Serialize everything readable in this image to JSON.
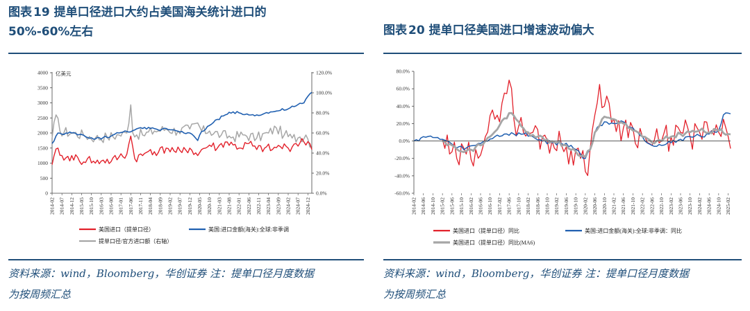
{
  "left": {
    "title_prefix": "图表",
    "title_num": "19",
    "title_line1": "提单口径进口大约占美国海关统计进口的",
    "title_line2": "50%-60%左右",
    "source_line1": "资料来源：wind，Bloomberg，华创证券   注：提单口径月度数据",
    "source_line2": "为按周频汇总"
  },
  "right": {
    "title_prefix": "图表",
    "title_num": "20",
    "title_text": "提单口径美国进口增速波动偏大",
    "source_line1": "资料来源：wind，Bloomberg，华创证券   注：提单口径月度数据",
    "source_line2": "为按周频汇总"
  },
  "colors": {
    "red": "#e2202a",
    "blue": "#1f5fb0",
    "gray": "#a6a6a6",
    "accent": "#1f4e79"
  },
  "chart_data": [
    {
      "type": "line",
      "ylabel": "亿美元",
      "ylim": [
        0,
        4000
      ],
      "y2lim": [
        0,
        1.2
      ],
      "yticks": [
        "0",
        "500",
        "1000",
        "1500",
        "2000",
        "2500",
        "3000",
        "3500",
        "4000"
      ],
      "y2ticks": [
        "0.0%",
        "20.0%",
        "40.0%",
        "60.0%",
        "80.0%",
        "100.0%",
        "120.0%"
      ],
      "x_range": [
        "2014-02",
        "2025-02"
      ],
      "xticks": [
        "2014-02",
        "2014-07",
        "2014-12",
        "2015-05",
        "2015-10",
        "2016-03",
        "2016-08",
        "2017-01",
        "2017-06",
        "2017-11",
        "2018-04",
        "2018-09",
        "2019-02",
        "2019-07",
        "2019-12",
        "2020-05",
        "2020-10",
        "2021-03",
        "2021-08",
        "2022-01",
        "2022-06",
        "2022-11",
        "2023-04",
        "2023-09",
        "2024-02",
        "2024-07",
        "2024-12"
      ],
      "legend_position": "bottom",
      "series": [
        {
          "name": "美国进口（提单口径）",
          "color": "#e2202a",
          "axis": "left",
          "anchors": [
            [
              0,
              950
            ],
            [
              3,
              1500
            ],
            [
              6,
              1100
            ],
            [
              10,
              1250
            ],
            [
              14,
              1050
            ],
            [
              18,
              1150
            ],
            [
              22,
              1000
            ],
            [
              26,
              1100
            ],
            [
              30,
              1050
            ],
            [
              34,
              1200
            ],
            [
              38,
              1300
            ],
            [
              40,
              1900
            ],
            [
              42,
              1150
            ],
            [
              46,
              1250
            ],
            [
              50,
              1450
            ],
            [
              54,
              1350
            ],
            [
              58,
              1500
            ],
            [
              62,
              1400
            ],
            [
              66,
              1350
            ],
            [
              70,
              1500
            ],
            [
              74,
              1250
            ],
            [
              76,
              1450
            ],
            [
              78,
              1500
            ],
            [
              80,
              1600
            ],
            [
              84,
              1500
            ],
            [
              88,
              1700
            ],
            [
              92,
              1600
            ],
            [
              96,
              1500
            ],
            [
              100,
              1650
            ],
            [
              104,
              1450
            ],
            [
              108,
              1500
            ],
            [
              112,
              1450
            ],
            [
              116,
              1550
            ],
            [
              120,
              1500
            ],
            [
              124,
              1650
            ],
            [
              128,
              1700
            ],
            [
              131,
              1650
            ],
            [
              132,
              1450
            ]
          ],
          "amp": 160
        },
        {
          "name": "美国:进口金额(海关):全球:非季调",
          "color": "#1f5fb0",
          "axis": "left",
          "anchors": [
            [
              0,
              1650
            ],
            [
              3,
              2000
            ],
            [
              6,
              1950
            ],
            [
              10,
              2000
            ],
            [
              14,
              1950
            ],
            [
              18,
              1850
            ],
            [
              22,
              1800
            ],
            [
              26,
              1850
            ],
            [
              30,
              1900
            ],
            [
              34,
              2000
            ],
            [
              38,
              2050
            ],
            [
              42,
              2100
            ],
            [
              46,
              2150
            ],
            [
              50,
              2150
            ],
            [
              54,
              2100
            ],
            [
              58,
              2150
            ],
            [
              62,
              2100
            ],
            [
              66,
              2050
            ],
            [
              70,
              2000
            ],
            [
              74,
              1750
            ],
            [
              76,
              2050
            ],
            [
              80,
              2250
            ],
            [
              84,
              2450
            ],
            [
              88,
              2600
            ],
            [
              92,
              2700
            ],
            [
              96,
              2650
            ],
            [
              100,
              2600
            ],
            [
              104,
              2600
            ],
            [
              108,
              2650
            ],
            [
              112,
              2700
            ],
            [
              116,
              2750
            ],
            [
              120,
              2800
            ],
            [
              124,
              2900
            ],
            [
              128,
              3000
            ],
            [
              131,
              3300
            ],
            [
              132,
              3350
            ]
          ],
          "amp": 45
        },
        {
          "name": "提单口径/官方进口额（右轴）",
          "color": "#a6a6a6",
          "axis": "right",
          "anchors": [
            [
              0,
              0.55
            ],
            [
              2,
              0.78
            ],
            [
              4,
              0.62
            ],
            [
              10,
              0.6
            ],
            [
              16,
              0.58
            ],
            [
              22,
              0.55
            ],
            [
              28,
              0.56
            ],
            [
              34,
              0.58
            ],
            [
              38,
              0.6
            ],
            [
              40,
              0.88
            ],
            [
              41,
              0.6
            ],
            [
              46,
              0.58
            ],
            [
              52,
              0.62
            ],
            [
              58,
              0.64
            ],
            [
              64,
              0.62
            ],
            [
              70,
              0.64
            ],
            [
              74,
              0.7
            ],
            [
              76,
              0.62
            ],
            [
              80,
              0.62
            ],
            [
              86,
              0.58
            ],
            [
              92,
              0.56
            ],
            [
              98,
              0.58
            ],
            [
              104,
              0.55
            ],
            [
              110,
              0.6
            ],
            [
              114,
              0.65
            ],
            [
              118,
              0.58
            ],
            [
              122,
              0.55
            ],
            [
              126,
              0.56
            ],
            [
              129,
              0.58
            ],
            [
              132,
              0.48
            ]
          ],
          "amp": 0.055
        }
      ]
    },
    {
      "type": "line",
      "ylim": [
        -0.6,
        0.8
      ],
      "yticks": [
        "-60.0%",
        "-40.0%",
        "-20.0%",
        "0.0%",
        "20.0%",
        "40.0%",
        "60.0%",
        "80.0%"
      ],
      "x_range": [
        "2014-02",
        "2025-02"
      ],
      "xticks": [
        "2014-02",
        "2014-06",
        "2014-10",
        "2015-02",
        "2015-06",
        "2015-10",
        "2016-02",
        "2016-06",
        "2016-10",
        "2017-02",
        "2017-06",
        "2017-10",
        "2018-02",
        "2018-06",
        "2018-10",
        "2019-02",
        "2019-06",
        "2019-10",
        "2020-02",
        "2020-06",
        "2020-10",
        "2021-02",
        "2021-06",
        "2021-10",
        "2022-02",
        "2022-06",
        "2022-10",
        "2023-02",
        "2023-06",
        "2023-10",
        "2024-02",
        "2024-06",
        "2024-10",
        "2025-02"
      ],
      "legend_position": "bottom",
      "series": [
        {
          "name": "美国进口（提单口径）同比",
          "color": "#e2202a",
          "anchors": [
            [
              12,
              0.02
            ],
            [
              15,
              -0.15
            ],
            [
              18,
              -0.2
            ],
            [
              22,
              -0.15
            ],
            [
              26,
              -0.1
            ],
            [
              30,
              0.05
            ],
            [
              34,
              0.25
            ],
            [
              38,
              0.55
            ],
            [
              40,
              0.7
            ],
            [
              42,
              0.25
            ],
            [
              46,
              0.1
            ],
            [
              50,
              0.1
            ],
            [
              54,
              0.05
            ],
            [
              58,
              0.0
            ],
            [
              62,
              -0.05
            ],
            [
              66,
              -0.1
            ],
            [
              70,
              -0.2
            ],
            [
              72,
              -0.35
            ],
            [
              74,
              -0.1
            ],
            [
              76,
              0.3
            ],
            [
              78,
              0.65
            ],
            [
              80,
              0.4
            ],
            [
              84,
              0.25
            ],
            [
              88,
              0.15
            ],
            [
              92,
              0.15
            ],
            [
              96,
              0.05
            ],
            [
              100,
              -0.05
            ],
            [
              104,
              0.0
            ],
            [
              108,
              0.05
            ],
            [
              112,
              0.1
            ],
            [
              116,
              0.05
            ],
            [
              120,
              0.1
            ],
            [
              124,
              0.08
            ],
            [
              128,
              0.1
            ],
            [
              132,
              0.05
            ]
          ],
          "amp": 0.18
        },
        {
          "name": "美国:进口金额(海关):全球:非季调：同比",
          "color": "#1f5fb0",
          "anchors": [
            [
              0,
              0.0
            ],
            [
              4,
              0.05
            ],
            [
              8,
              0.04
            ],
            [
              12,
              0.02
            ],
            [
              14,
              0.0
            ],
            [
              18,
              -0.08
            ],
            [
              22,
              -0.08
            ],
            [
              26,
              -0.05
            ],
            [
              30,
              0.0
            ],
            [
              34,
              0.05
            ],
            [
              38,
              0.08
            ],
            [
              42,
              0.08
            ],
            [
              46,
              0.08
            ],
            [
              50,
              0.05
            ],
            [
              54,
              0.0
            ],
            [
              58,
              -0.02
            ],
            [
              62,
              -0.03
            ],
            [
              66,
              -0.05
            ],
            [
              70,
              -0.15
            ],
            [
              72,
              -0.2
            ],
            [
              74,
              -0.1
            ],
            [
              76,
              0.1
            ],
            [
              78,
              0.18
            ],
            [
              80,
              0.22
            ],
            [
              84,
              0.2
            ],
            [
              88,
              0.22
            ],
            [
              92,
              0.15
            ],
            [
              96,
              0.05
            ],
            [
              100,
              -0.05
            ],
            [
              104,
              -0.05
            ],
            [
              108,
              -0.02
            ],
            [
              112,
              0.02
            ],
            [
              116,
              0.05
            ],
            [
              120,
              0.06
            ],
            [
              124,
              0.08
            ],
            [
              128,
              0.12
            ],
            [
              130,
              0.3
            ],
            [
              132,
              0.32
            ]
          ],
          "amp": 0.025
        },
        {
          "name": "美国进口（提单口径）同比(MA6)",
          "color": "#a6a6a6",
          "anchors": [
            [
              12,
              0.0
            ],
            [
              16,
              -0.05
            ],
            [
              20,
              -0.12
            ],
            [
              24,
              -0.1
            ],
            [
              28,
              -0.05
            ],
            [
              32,
              0.05
            ],
            [
              36,
              0.18
            ],
            [
              40,
              0.32
            ],
            [
              44,
              0.22
            ],
            [
              48,
              0.1
            ],
            [
              52,
              0.05
            ],
            [
              56,
              0.02
            ],
            [
              60,
              -0.02
            ],
            [
              64,
              -0.05
            ],
            [
              68,
              -0.12
            ],
            [
              72,
              -0.18
            ],
            [
              74,
              -0.1
            ],
            [
              76,
              0.1
            ],
            [
              80,
              0.28
            ],
            [
              84,
              0.25
            ],
            [
              88,
              0.2
            ],
            [
              92,
              0.12
            ],
            [
              96,
              0.05
            ],
            [
              100,
              -0.02
            ],
            [
              104,
              0.0
            ],
            [
              108,
              0.05
            ],
            [
              112,
              0.08
            ],
            [
              116,
              0.1
            ],
            [
              120,
              0.12
            ],
            [
              124,
              0.1
            ],
            [
              128,
              0.12
            ],
            [
              132,
              0.08
            ]
          ],
          "amp": 0.03
        }
      ]
    }
  ]
}
